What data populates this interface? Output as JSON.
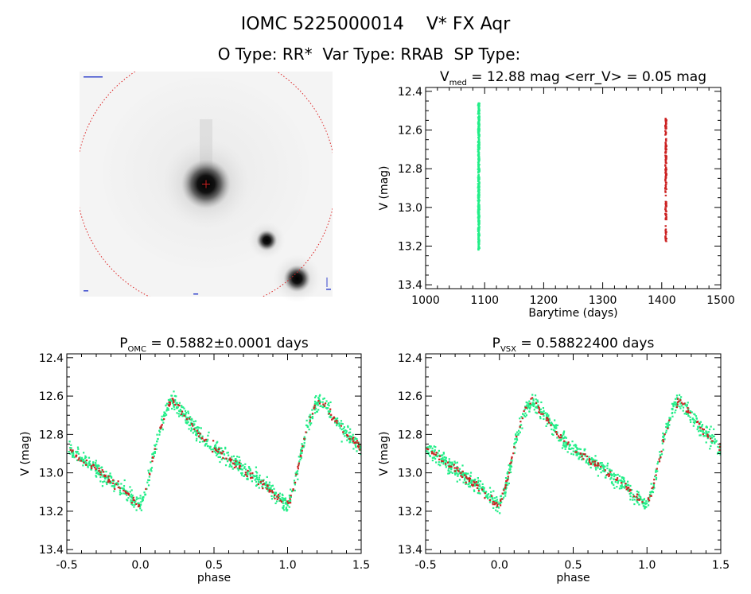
{
  "header": {
    "title": "IOMC 5225000014    V* FX Aqr",
    "subtitle": "O Type: RR*  Var Type: RRAB  SP Type:"
  },
  "colors": {
    "omc": "#22ee88",
    "vsx_red": "#cc2222",
    "axes": "#000000"
  },
  "chart_data": [
    {
      "type": "image",
      "name": "finding-chart",
      "description": "grayscale sky cutout with red circular aperture",
      "sources": [
        {
          "label": "target",
          "x": 0.5,
          "y": 0.5
        },
        {
          "label": "star-2",
          "x": 0.74,
          "y": 0.75
        },
        {
          "label": "star-3",
          "x": 0.86,
          "y": 0.92
        }
      ]
    },
    {
      "type": "scatter",
      "name": "light-curve",
      "title_parts": [
        "V",
        "med",
        " = 12.88 mag <err_V> = 0.05 mag"
      ],
      "xlabel": "Barytime (days)",
      "ylabel": "V (mag)",
      "xlim": [
        1000,
        1500
      ],
      "ylim": [
        13.42,
        12.38
      ],
      "y_inverted": true,
      "xticks": [
        1000,
        1100,
        1200,
        1300,
        1400,
        1500
      ],
      "yticks": [
        12.4,
        12.6,
        12.8,
        13.0,
        13.2,
        13.4
      ],
      "series": [
        {
          "color": "#22ee88",
          "x_center": 1090,
          "x_spread": 1.2,
          "y_range": [
            12.46,
            13.22
          ],
          "n": 420
        },
        {
          "color": "#cc2222",
          "x_center": 1407,
          "x_spread": 1.0,
          "y_range": [
            12.54,
            13.18
          ],
          "n": 160
        }
      ]
    },
    {
      "type": "scatter",
      "name": "phased-omc",
      "title_parts": [
        "P",
        "OMC",
        " = 0.5882±0.0001 days"
      ],
      "xlabel": "phase",
      "ylabel": "V (mag)",
      "xlim": [
        -0.5,
        1.5
      ],
      "ylim": [
        13.42,
        12.38
      ],
      "y_inverted": true,
      "xticks": [
        -0.5,
        0.0,
        0.5,
        1.0,
        1.5
      ],
      "yticks": [
        12.4,
        12.6,
        12.8,
        13.0,
        13.2,
        13.4
      ],
      "template": {
        "phase": [
          0.0,
          0.05,
          0.12,
          0.18,
          0.22,
          0.3,
          0.4,
          0.5,
          0.6,
          0.7,
          0.8,
          0.9,
          0.98,
          1.0
        ],
        "mag": [
          13.17,
          13.05,
          12.8,
          12.66,
          12.62,
          12.7,
          12.8,
          12.87,
          12.93,
          12.98,
          13.04,
          13.1,
          13.16,
          13.17
        ]
      },
      "series": [
        {
          "color": "#22ee88",
          "n": 900,
          "scatter": 0.05
        },
        {
          "color": "#cc2222",
          "n": 220,
          "scatter": 0.025
        }
      ]
    },
    {
      "type": "scatter",
      "name": "phased-vsx",
      "title_parts": [
        "P",
        "VSX",
        " = 0.58822400 days"
      ],
      "xlabel": "phase",
      "ylabel": "V (mag)",
      "xlim": [
        -0.5,
        1.5
      ],
      "ylim": [
        13.42,
        12.38
      ],
      "y_inverted": true,
      "xticks": [
        -0.5,
        0.0,
        0.5,
        1.0,
        1.5
      ],
      "yticks": [
        12.4,
        12.6,
        12.8,
        13.0,
        13.2,
        13.4
      ],
      "template": {
        "phase": [
          0.0,
          0.05,
          0.12,
          0.18,
          0.22,
          0.3,
          0.4,
          0.5,
          0.6,
          0.7,
          0.8,
          0.9,
          0.98,
          1.0
        ],
        "mag": [
          13.17,
          13.05,
          12.8,
          12.66,
          12.62,
          12.7,
          12.8,
          12.87,
          12.93,
          12.98,
          13.04,
          13.1,
          13.16,
          13.17
        ]
      },
      "series": [
        {
          "color": "#22ee88",
          "n": 900,
          "scatter": 0.05
        },
        {
          "color": "#cc2222",
          "n": 220,
          "scatter": 0.025
        }
      ]
    }
  ]
}
